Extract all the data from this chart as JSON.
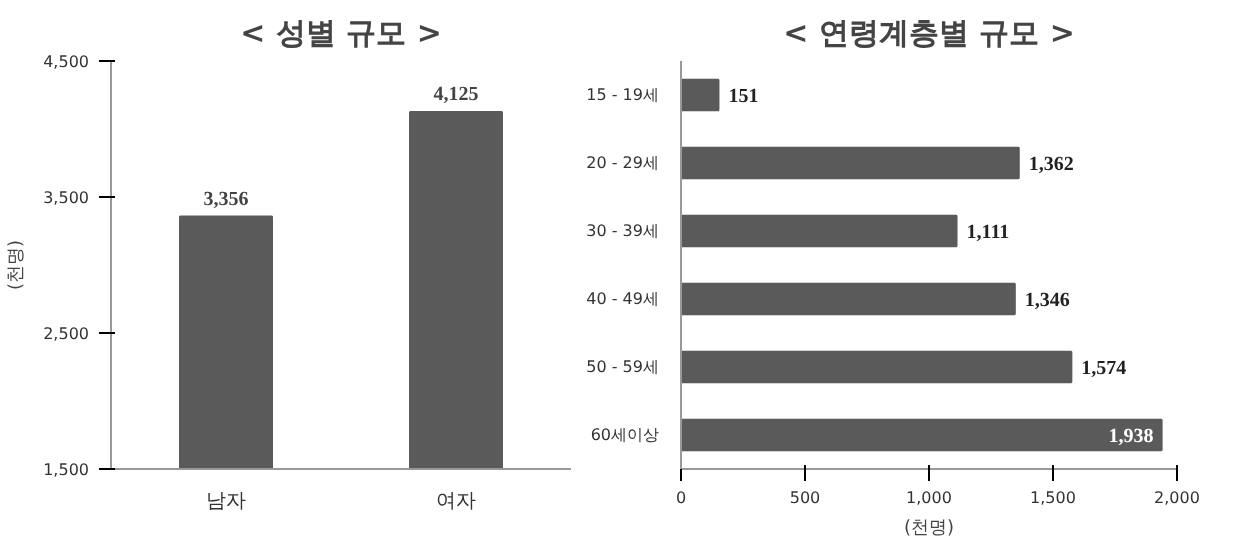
{
  "chart_data": [
    {
      "type": "bar",
      "title": "< 성별 규모 >",
      "ylabel": "(천명)",
      "categories": [
        "남자",
        "여자"
      ],
      "values": [
        3356,
        4125
      ],
      "color": "#5a5a5a",
      "ylim": [
        1500,
        4500
      ],
      "yticks": [
        {
          "value": 1500,
          "label": "1,500"
        },
        {
          "value": 2500,
          "label": "2,500"
        },
        {
          "value": 3500,
          "label": "3,500"
        },
        {
          "value": 4500,
          "label": "4,500"
        }
      ],
      "data_labels": true,
      "value_labels": [
        "3,356",
        "4,125"
      ],
      "grid": false
    },
    {
      "type": "bar",
      "orientation": "horizontal",
      "title": "< 연령계층별 규모 >",
      "xlabel": "(천명)",
      "categories": [
        "15 - 19세",
        "20 - 29세",
        "30 - 39세",
        "40 - 49세",
        "50 - 59세",
        "60세이상"
      ],
      "values": [
        151,
        1362,
        1111,
        1346,
        1574,
        1938
      ],
      "color": "#5a5a5a",
      "xlim": [
        0,
        2000
      ],
      "xticks": [
        0,
        500,
        {
          "value": 1000,
          "label": "1,000"
        },
        {
          "value": 1500,
          "label": "1,500"
        },
        {
          "value": 2000,
          "label": "2,000"
        }
      ],
      "data_labels": true,
      "value_labels": [
        "151",
        "1,362",
        "1,111",
        "1,346",
        "1,574",
        "1,938"
      ],
      "grid": false
    }
  ]
}
